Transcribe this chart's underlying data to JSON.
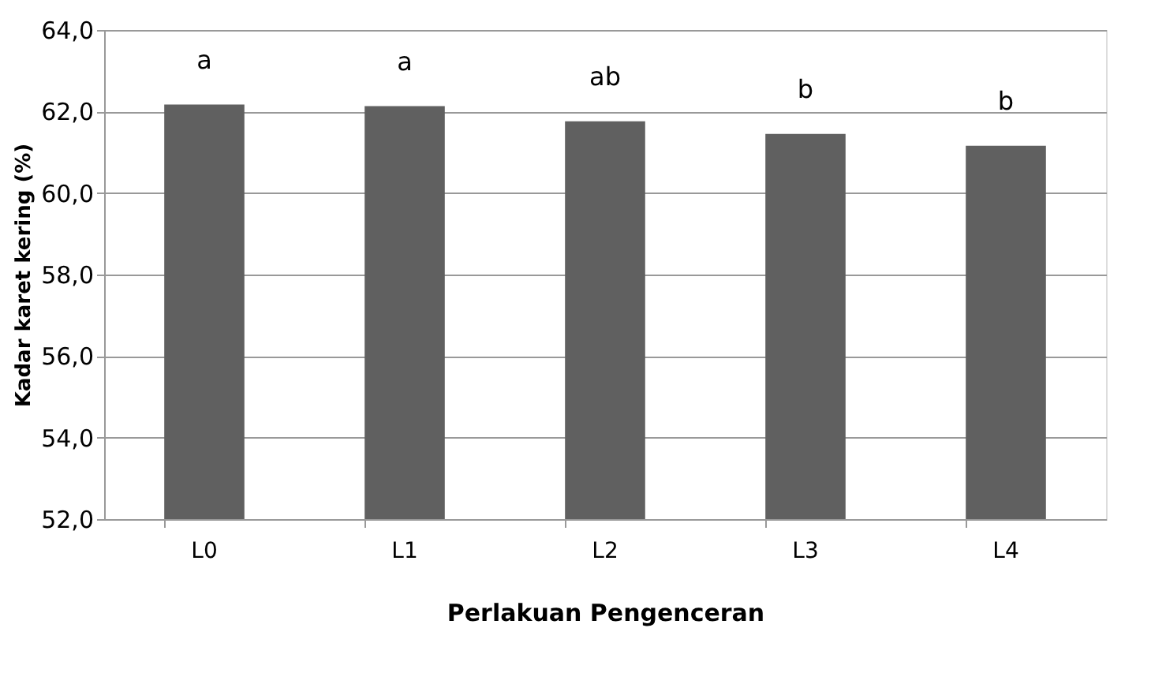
{
  "chart_data": {
    "type": "bar",
    "xlabel": "Perlakuan Pengenceran",
    "ylabel": "Kadar karet kering (%)",
    "categories": [
      "L0",
      "L1",
      "L2",
      "L3",
      "L4"
    ],
    "values": [
      62.17,
      62.13,
      61.76,
      61.45,
      61.16
    ],
    "color": "#606060",
    "ylim": [
      52,
      64
    ],
    "yticks": [
      {
        "value": 52,
        "label": "52,0"
      },
      {
        "value": 54,
        "label": "54,0"
      },
      {
        "value": 56,
        "label": "56,0"
      },
      {
        "value": 58,
        "label": "58,0"
      },
      {
        "value": 60,
        "label": "60,0"
      },
      {
        "value": 62,
        "label": "62,0"
      },
      {
        "value": 64,
        "label": "64,0"
      }
    ],
    "grid": "y",
    "annotations": [
      "a",
      "a",
      "ab",
      "b",
      "b"
    ]
  }
}
